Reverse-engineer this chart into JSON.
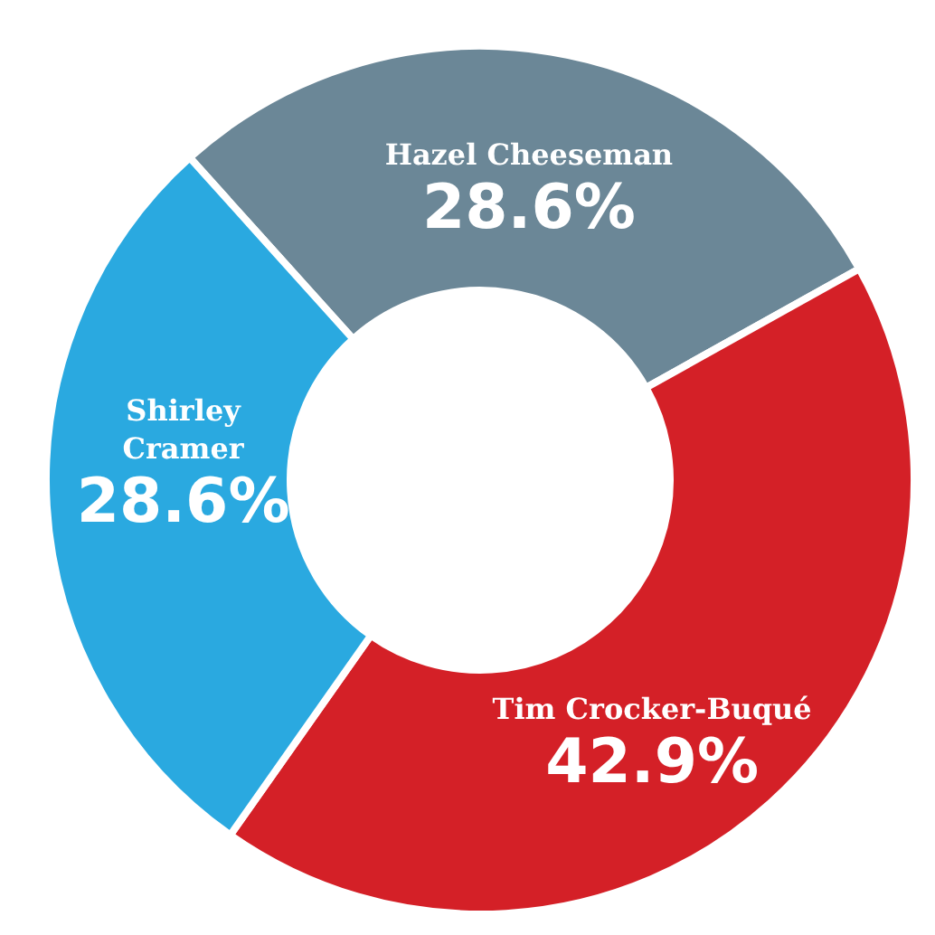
{
  "chart_data": {
    "type": "donut",
    "categories": [
      "Hazel Cheeseman",
      "Tim Crocker-Buqué",
      "Shirley Cramer"
    ],
    "values": [
      28.6,
      42.9,
      28.6
    ],
    "colors": [
      "#6b8797",
      "#d42027",
      "#2aa9e0"
    ],
    "value_labels": [
      "28.6%",
      "42.9%",
      "28.6%"
    ]
  }
}
